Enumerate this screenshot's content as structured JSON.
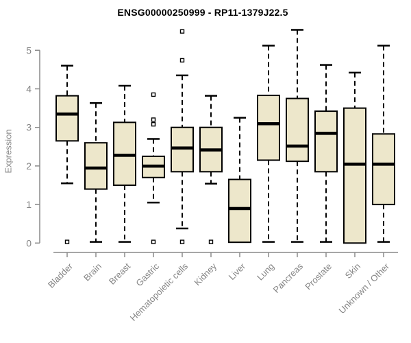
{
  "chart_data": {
    "type": "box",
    "title": "ENSG00000250999 - RP11-1379J22.5",
    "xlabel": "",
    "ylabel": "Expression",
    "ylim": [
      0,
      5.6
    ],
    "yticks": [
      0,
      1,
      2,
      3,
      4,
      5
    ],
    "grid": false,
    "legend": "none",
    "categories": [
      "Bladder",
      "Brain",
      "Breast",
      "Gastric",
      "Hematopoietic cells",
      "Kidney",
      "Liver",
      "Lung",
      "Pancreas",
      "Prostate",
      "Skin",
      "Unknown / Other"
    ],
    "boxes": [
      {
        "label": "Bladder",
        "whisker_low": 1.55,
        "q1": 2.65,
        "median": 3.35,
        "q3": 3.82,
        "whisker_high": 4.6,
        "outliers": [
          0.03
        ]
      },
      {
        "label": "Brain",
        "whisker_low": 0.03,
        "q1": 1.4,
        "median": 1.95,
        "q3": 2.6,
        "whisker_high": 3.63,
        "outliers": []
      },
      {
        "label": "Breast",
        "whisker_low": 0.03,
        "q1": 1.5,
        "median": 2.28,
        "q3": 3.13,
        "whisker_high": 4.08,
        "outliers": []
      },
      {
        "label": "Gastric",
        "whisker_low": 1.05,
        "q1": 1.7,
        "median": 2.0,
        "q3": 2.25,
        "whisker_high": 2.7,
        "outliers": [
          3.85,
          3.2,
          3.08,
          0.03
        ]
      },
      {
        "label": "Hematopoietic cells",
        "whisker_low": 0.38,
        "q1": 1.85,
        "median": 2.47,
        "q3": 3.0,
        "whisker_high": 4.35,
        "outliers": [
          5.49,
          4.74,
          0.03
        ]
      },
      {
        "label": "Kidney",
        "whisker_low": 1.54,
        "q1": 1.85,
        "median": 2.42,
        "q3": 3.0,
        "whisker_high": 3.82,
        "outliers": [
          0.03
        ]
      },
      {
        "label": "Liver",
        "whisker_low": 0.02,
        "q1": 0.02,
        "median": 0.9,
        "q3": 1.65,
        "whisker_high": 3.25,
        "outliers": []
      },
      {
        "label": "Lung",
        "whisker_low": 0.03,
        "q1": 2.15,
        "median": 3.1,
        "q3": 3.83,
        "whisker_high": 5.12,
        "outliers": []
      },
      {
        "label": "Pancreas",
        "whisker_low": 0.03,
        "q1": 2.12,
        "median": 2.52,
        "q3": 3.75,
        "whisker_high": 5.53,
        "outliers": []
      },
      {
        "label": "Prostate",
        "whisker_low": 0.03,
        "q1": 1.85,
        "median": 2.85,
        "q3": 3.42,
        "whisker_high": 4.62,
        "outliers": []
      },
      {
        "label": "Skin",
        "whisker_low": 0.0,
        "q1": 0.0,
        "median": 2.05,
        "q3": 3.5,
        "whisker_high": 4.42,
        "outliers": []
      },
      {
        "label": "Unknown / Other",
        "whisker_low": 0.03,
        "q1": 1.0,
        "median": 2.05,
        "q3": 2.83,
        "whisker_high": 5.12,
        "outliers": []
      }
    ],
    "colors": {
      "box_fill": "#EDE7CB",
      "box_stroke": "#000000",
      "median": "#000000",
      "whisker": "#000000",
      "axis_line": "#8a8a8a",
      "tick_text": "#848484",
      "title_text": "#000000"
    }
  }
}
